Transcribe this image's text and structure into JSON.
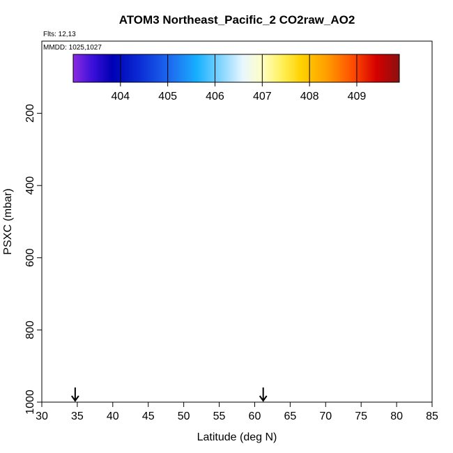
{
  "chart_data": {
    "type": "heatmap",
    "title": "ATOM3 Northeast_Pacific_2 CO2raw_AO2",
    "flights_note": "Flts: 12,13",
    "date_note": "MMDD: 1025,1027",
    "xlabel": "Latitude (deg N)",
    "ylabel": "PSXC (mbar)",
    "xlim": [
      30,
      85
    ],
    "ylim": [
      1000,
      0
    ],
    "x_ticks": [
      "30",
      "35",
      "40",
      "45",
      "50",
      "55",
      "60",
      "65",
      "70",
      "75",
      "80",
      "85"
    ],
    "y_ticks": [
      "200",
      "400",
      "600",
      "800",
      "1000"
    ],
    "colorbar": {
      "range": [
        403,
        409.9
      ],
      "tick_labels": [
        "404",
        "405",
        "406",
        "407",
        "408",
        "409"
      ]
    },
    "markers": {
      "arrow_latitudes": [
        34.7,
        61.2
      ]
    },
    "grid": false,
    "legend": "colorbar-top",
    "colors": {
      "frame": "#000000",
      "flight_track": "#ffffff"
    }
  }
}
